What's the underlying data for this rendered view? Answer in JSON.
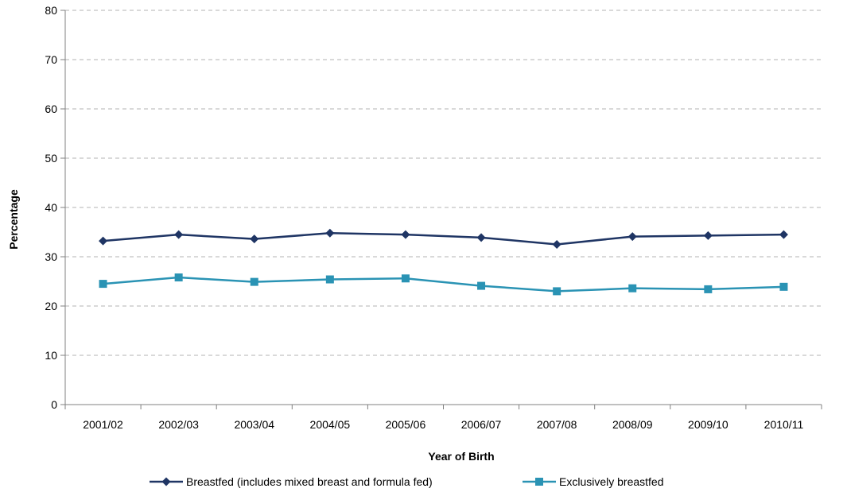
{
  "chart_data": {
    "type": "line",
    "title": "",
    "xlabel": "Year of Birth",
    "ylabel": "Percentage",
    "categories": [
      "2001/02",
      "2002/03",
      "2003/04",
      "2004/05",
      "2005/06",
      "2006/07",
      "2007/08",
      "2008/09",
      "2009/10",
      "2010/11"
    ],
    "ylim": [
      0,
      80
    ],
    "yticks": [
      0,
      10,
      20,
      30,
      40,
      50,
      60,
      70,
      80
    ],
    "grid": "horizontal dashed",
    "legend_position": "bottom",
    "series": [
      {
        "name": "Breastfed (includes mixed breast and formula fed)",
        "color": "#1f3564",
        "marker": "diamond",
        "values": [
          33.2,
          34.5,
          33.6,
          34.8,
          34.5,
          33.9,
          32.5,
          34.1,
          34.3,
          34.5
        ]
      },
      {
        "name": "Exclusively breastfed",
        "color": "#2a93b4",
        "marker": "square",
        "values": [
          24.5,
          25.8,
          24.9,
          25.4,
          25.6,
          24.1,
          23.0,
          23.6,
          23.4,
          23.9
        ]
      }
    ]
  }
}
